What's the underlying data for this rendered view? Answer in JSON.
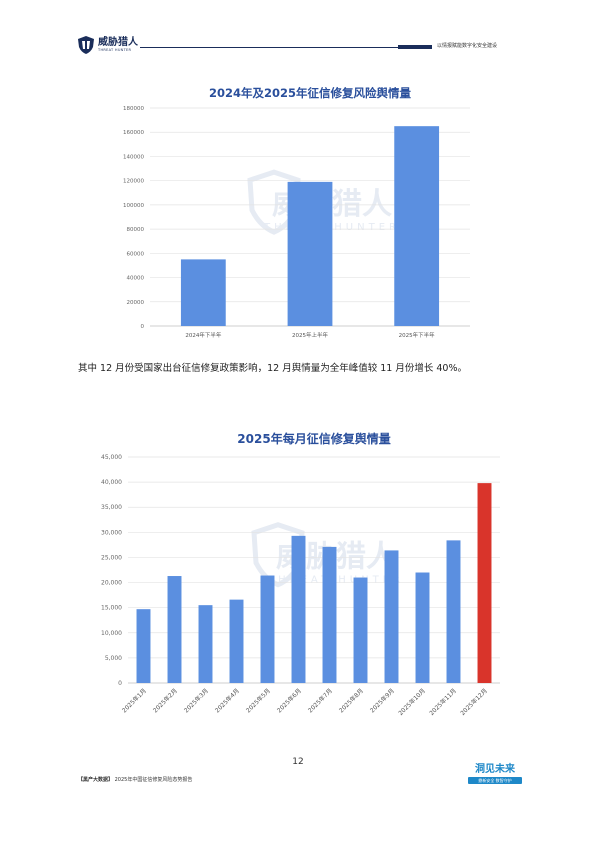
{
  "header": {
    "logo_cn": "威胁猎人",
    "logo_en": "THREAT HUNTER",
    "right_text": "以情报赋能数字化安全建设"
  },
  "chart_data": [
    {
      "type": "bar",
      "title": "2024年及2025年征信修复风险舆情量",
      "categories": [
        "2024年下半年",
        "2025年上半年",
        "2025年下半年"
      ],
      "values": [
        55000,
        119000,
        165000
      ],
      "ylim": [
        0,
        180000
      ],
      "yticks": [
        "0",
        "20000",
        "40000",
        "60000",
        "80000",
        "100000",
        "120000",
        "140000",
        "160000",
        "180000"
      ],
      "xlabel": "",
      "ylabel": "",
      "bar_color": "#5b8fe0",
      "grid": true
    },
    {
      "type": "bar",
      "title": "2025年每月征信修复舆情量",
      "categories": [
        "2025年1月",
        "2025年2月",
        "2025年3月",
        "2025年4月",
        "2025年5月",
        "2025年6月",
        "2025年7月",
        "2025年8月",
        "2025年9月",
        "2025年10月",
        "2025年11月",
        "2025年12月"
      ],
      "values": [
        14700,
        21300,
        15500,
        16600,
        21400,
        29300,
        27100,
        21000,
        26400,
        22000,
        28400,
        39800
      ],
      "ylim": [
        0,
        45000
      ],
      "yticks": [
        "0",
        "5,000",
        "10,000",
        "15,000",
        "20,000",
        "25,000",
        "30,000",
        "35,000",
        "40,000",
        "45,000"
      ],
      "xlabel": "",
      "ylabel": "",
      "bar_color": "#5b8fe0",
      "highlight_index": 11,
      "highlight_color": "#d9342b",
      "grid": true
    }
  ],
  "watermark": {
    "cn": "威胁猎人",
    "en": "THREAT HUNTER"
  },
  "paragraph": "其中 12 月份受国家出台征信修复政策影响，12 月舆情量为全年峰值较 11 月份增长 40%。",
  "page_number": "12",
  "footer": {
    "bracket": "【黑产大数据】",
    "text": "2025年中国征信修复风险态势报告",
    "brand_title": "洞见未来",
    "brand_sub": "鼎新安全 数智守护"
  }
}
